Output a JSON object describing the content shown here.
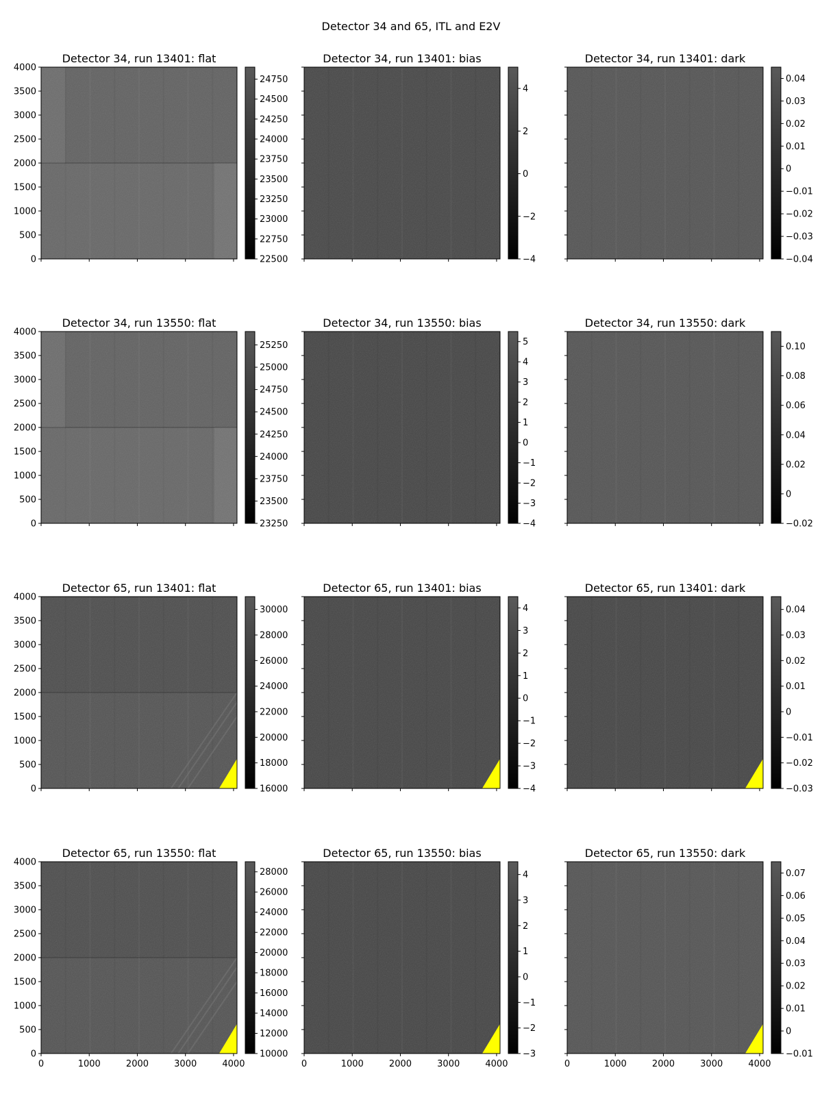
{
  "figure": {
    "suptitle": "Detector 34 and 65, ITL and E2V"
  },
  "colors": {
    "image_base": "#3e3e3e",
    "vignette": "#ffff00",
    "colorbar_top": "#5a5a5a",
    "colorbar_bottom": "#000000"
  },
  "chart_data": [
    {
      "type": "heatmap",
      "title": "Detector 34, run 13401: flat",
      "xlim": [
        0,
        4072
      ],
      "ylim": [
        0,
        4000
      ],
      "x_ticks": [
        0,
        1000,
        2000,
        3000,
        4000
      ],
      "y_ticks": [
        0,
        500,
        1000,
        1500,
        2000,
        2500,
        3000,
        3500,
        4000
      ],
      "colorbar": {
        "range": [
          22500,
          24900
        ],
        "ticks": [
          22500,
          22750,
          23000,
          23250,
          23500,
          23750,
          24000,
          24250,
          24500,
          24750
        ]
      },
      "tone": 0.38,
      "has_vignette": false,
      "amp_boundary": true
    },
    {
      "type": "heatmap",
      "title": "Detector 34, run 13401: bias",
      "xlim": [
        0,
        4072
      ],
      "ylim": [
        0,
        4000
      ],
      "x_ticks": [
        0,
        1000,
        2000,
        3000,
        4000
      ],
      "y_ticks": [],
      "colorbar": {
        "range": [
          -4,
          5
        ],
        "ticks": [
          -4,
          -2,
          0,
          2,
          4
        ]
      },
      "tone": 0.28,
      "has_vignette": false,
      "amp_boundary": false
    },
    {
      "type": "heatmap",
      "title": "Detector 34, run 13401: dark",
      "xlim": [
        0,
        4072
      ],
      "ylim": [
        0,
        4000
      ],
      "x_ticks": [
        0,
        1000,
        2000,
        3000,
        4000
      ],
      "y_ticks": [],
      "colorbar": {
        "range": [
          -0.04,
          0.045
        ],
        "ticks": [
          -0.04,
          -0.03,
          -0.02,
          -0.01,
          0.0,
          0.01,
          0.02,
          0.03,
          0.04
        ]
      },
      "tone": 0.33,
      "has_vignette": false,
      "amp_boundary": false
    },
    {
      "type": "heatmap",
      "title": "Detector 34, run 13550: flat",
      "xlim": [
        0,
        4072
      ],
      "ylim": [
        0,
        4000
      ],
      "x_ticks": [
        0,
        1000,
        2000,
        3000,
        4000
      ],
      "y_ticks": [
        0,
        500,
        1000,
        1500,
        2000,
        2500,
        3000,
        3500,
        4000
      ],
      "colorbar": {
        "range": [
          23250,
          25400
        ],
        "ticks": [
          23250,
          23500,
          23750,
          24000,
          24250,
          24500,
          24750,
          25000,
          25250
        ]
      },
      "tone": 0.38,
      "has_vignette": false,
      "amp_boundary": true
    },
    {
      "type": "heatmap",
      "title": "Detector 34, run 13550: bias",
      "xlim": [
        0,
        4072
      ],
      "ylim": [
        0,
        4000
      ],
      "x_ticks": [
        0,
        1000,
        2000,
        3000,
        4000
      ],
      "y_ticks": [],
      "colorbar": {
        "range": [
          -4,
          5.5
        ],
        "ticks": [
          -4,
          -3,
          -2,
          -1,
          0,
          1,
          2,
          3,
          4,
          5
        ]
      },
      "tone": 0.27,
      "has_vignette": false,
      "amp_boundary": false
    },
    {
      "type": "heatmap",
      "title": "Detector 34, run 13550: dark",
      "xlim": [
        0,
        4072
      ],
      "ylim": [
        0,
        4000
      ],
      "x_ticks": [
        0,
        1000,
        2000,
        3000,
        4000
      ],
      "y_ticks": [],
      "colorbar": {
        "range": [
          -0.02,
          0.11
        ],
        "ticks": [
          -0.02,
          0.0,
          0.02,
          0.04,
          0.06,
          0.08,
          0.1
        ]
      },
      "tone": 0.33,
      "has_vignette": false,
      "amp_boundary": false
    },
    {
      "type": "heatmap",
      "title": "Detector 65, run 13401: flat",
      "xlim": [
        0,
        4072
      ],
      "ylim": [
        0,
        4000
      ],
      "x_ticks": [
        0,
        1000,
        2000,
        3000,
        4000
      ],
      "y_ticks": [
        0,
        500,
        1000,
        1500,
        2000,
        2500,
        3000,
        3500,
        4000
      ],
      "colorbar": {
        "range": [
          16000,
          31000
        ],
        "ticks": [
          16000,
          18000,
          20000,
          22000,
          24000,
          26000,
          28000,
          30000
        ]
      },
      "tone": 0.3,
      "has_vignette": true,
      "amp_boundary": true,
      "streaks": true
    },
    {
      "type": "heatmap",
      "title": "Detector 65, run 13401: bias",
      "xlim": [
        0,
        4072
      ],
      "ylim": [
        0,
        4000
      ],
      "x_ticks": [
        0,
        1000,
        2000,
        3000,
        4000
      ],
      "y_ticks": [],
      "colorbar": {
        "range": [
          -4,
          4.5
        ],
        "ticks": [
          -4,
          -3,
          -2,
          -1,
          0,
          1,
          2,
          3,
          4
        ]
      },
      "tone": 0.27,
      "has_vignette": true,
      "amp_boundary": false
    },
    {
      "type": "heatmap",
      "title": "Detector 65, run 13401: dark",
      "xlim": [
        0,
        4072
      ],
      "ylim": [
        0,
        4000
      ],
      "x_ticks": [
        0,
        1000,
        2000,
        3000,
        4000
      ],
      "y_ticks": [],
      "colorbar": {
        "range": [
          -0.03,
          0.045
        ],
        "ticks": [
          -0.03,
          -0.02,
          -0.01,
          0.0,
          0.01,
          0.02,
          0.03,
          0.04
        ]
      },
      "tone": 0.27,
      "has_vignette": true,
      "amp_boundary": false
    },
    {
      "type": "heatmap",
      "title": "Detector 65, run 13550: flat",
      "xlim": [
        0,
        4072
      ],
      "ylim": [
        0,
        4000
      ],
      "x_ticks": [
        0,
        1000,
        2000,
        3000,
        4000
      ],
      "y_ticks": [
        0,
        500,
        1000,
        1500,
        2000,
        2500,
        3000,
        3500,
        4000
      ],
      "colorbar": {
        "range": [
          10000,
          29000
        ],
        "ticks": [
          10000,
          12000,
          14000,
          16000,
          18000,
          20000,
          22000,
          24000,
          26000,
          28000
        ]
      },
      "tone": 0.3,
      "has_vignette": true,
      "amp_boundary": true,
      "streaks": true
    },
    {
      "type": "heatmap",
      "title": "Detector 65, run 13550: bias",
      "xlim": [
        0,
        4072
      ],
      "ylim": [
        0,
        4000
      ],
      "x_ticks": [
        0,
        1000,
        2000,
        3000,
        4000
      ],
      "y_ticks": [],
      "colorbar": {
        "range": [
          -3,
          4.5
        ],
        "ticks": [
          -3,
          -2,
          -1,
          0,
          1,
          2,
          3,
          4
        ]
      },
      "tone": 0.27,
      "has_vignette": true,
      "amp_boundary": false
    },
    {
      "type": "heatmap",
      "title": "Detector 65, run 13550: dark",
      "xlim": [
        0,
        4072
      ],
      "ylim": [
        0,
        4000
      ],
      "x_ticks": [
        0,
        1000,
        2000,
        3000,
        4000
      ],
      "y_ticks": [],
      "colorbar": {
        "range": [
          -0.01,
          0.075
        ],
        "ticks": [
          -0.01,
          0.0,
          0.01,
          0.02,
          0.03,
          0.04,
          0.05,
          0.06,
          0.07
        ]
      },
      "tone": 0.33,
      "has_vignette": true,
      "amp_boundary": false
    }
  ]
}
